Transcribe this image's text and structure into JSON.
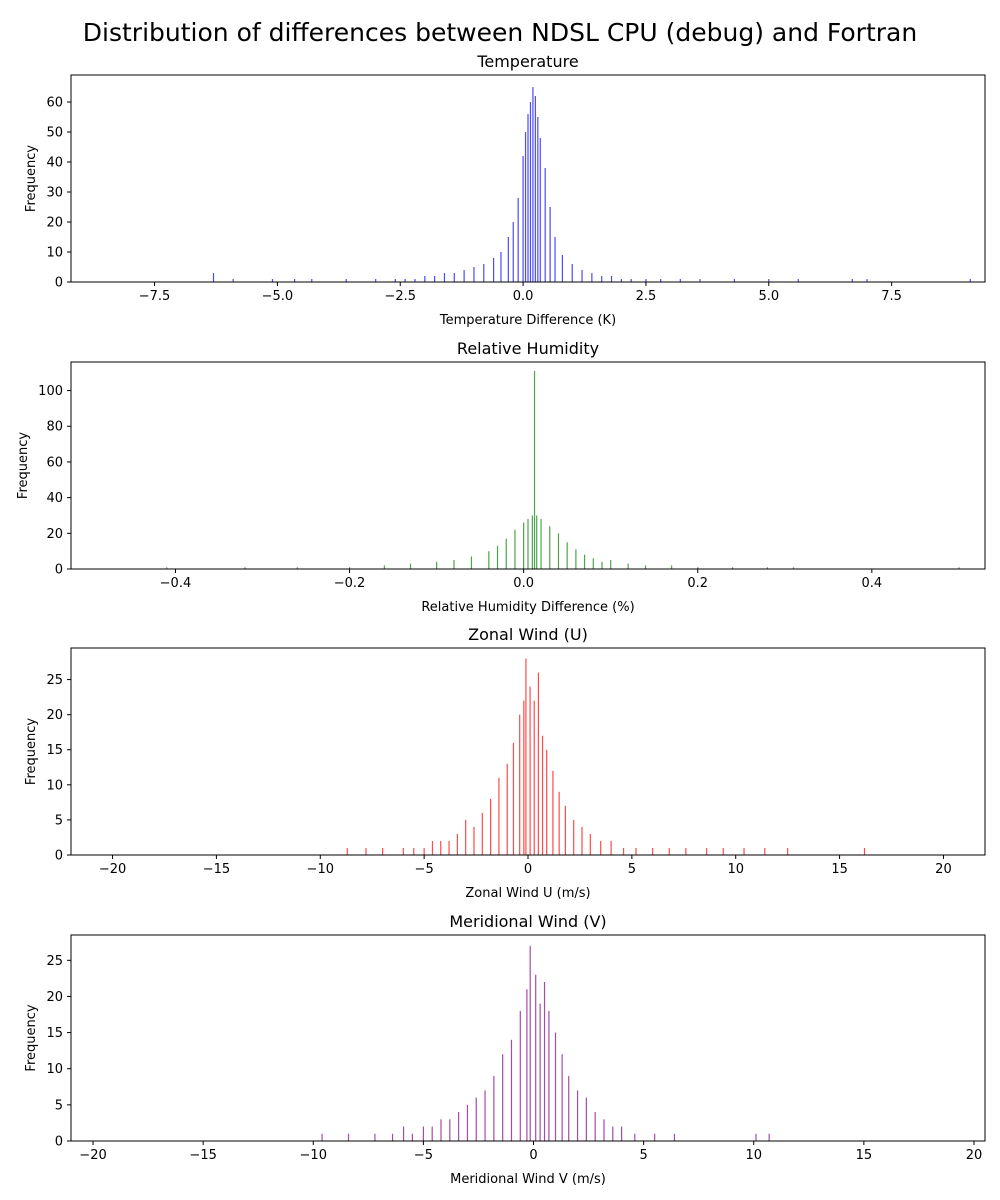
{
  "figure": {
    "suptitle": "Distribution of differences between NDSL CPU (debug) and Fortran"
  },
  "chart_data": [
    {
      "type": "bar",
      "title": "Temperature",
      "xlabel": "Temperature Difference (K)",
      "ylabel": "Frequency",
      "color": "#4b4bff",
      "xlim": [
        -9.2,
        9.4
      ],
      "ylim": [
        0,
        69
      ],
      "xticks": [
        -7.5,
        -5.0,
        -2.5,
        0.0,
        2.5,
        5.0,
        7.5
      ],
      "xtick_labels": [
        "−7.5",
        "−5.0",
        "−2.5",
        "0.0",
        "2.5",
        "5.0",
        "7.5"
      ],
      "yticks": [
        0,
        10,
        20,
        30,
        40,
        50,
        60
      ],
      "ytick_labels": [
        "0",
        "10",
        "20",
        "30",
        "40",
        "50",
        "60"
      ],
      "grid": false,
      "bins": [
        [
          -6.3,
          3
        ],
        [
          -5.9,
          1
        ],
        [
          -5.1,
          1
        ],
        [
          -4.65,
          1
        ],
        [
          -4.3,
          1
        ],
        [
          -3.6,
          1
        ],
        [
          -3.0,
          1
        ],
        [
          -2.6,
          1
        ],
        [
          -2.4,
          1
        ],
        [
          -2.2,
          1
        ],
        [
          -2.0,
          2
        ],
        [
          -1.8,
          2
        ],
        [
          -1.6,
          3
        ],
        [
          -1.4,
          3
        ],
        [
          -1.2,
          4
        ],
        [
          -1.0,
          5
        ],
        [
          -0.8,
          6
        ],
        [
          -0.6,
          8
        ],
        [
          -0.45,
          10
        ],
        [
          -0.3,
          15
        ],
        [
          -0.2,
          20
        ],
        [
          -0.1,
          28
        ],
        [
          0.0,
          42
        ],
        [
          0.05,
          50
        ],
        [
          0.1,
          56
        ],
        [
          0.15,
          60
        ],
        [
          0.2,
          65
        ],
        [
          0.25,
          62
        ],
        [
          0.3,
          55
        ],
        [
          0.35,
          48
        ],
        [
          0.45,
          38
        ],
        [
          0.55,
          25
        ],
        [
          0.65,
          15
        ],
        [
          0.8,
          9
        ],
        [
          1.0,
          6
        ],
        [
          1.2,
          4
        ],
        [
          1.4,
          3
        ],
        [
          1.6,
          2
        ],
        [
          1.8,
          2
        ],
        [
          2.0,
          1
        ],
        [
          2.2,
          1
        ],
        [
          2.5,
          1
        ],
        [
          2.8,
          1
        ],
        [
          3.2,
          1
        ],
        [
          3.6,
          1
        ],
        [
          4.3,
          1
        ],
        [
          5.0,
          1
        ],
        [
          5.6,
          1
        ],
        [
          6.7,
          1
        ],
        [
          7.0,
          1
        ],
        [
          9.1,
          1
        ]
      ]
    },
    {
      "type": "bar",
      "title": "Relative Humidity",
      "xlabel": "Relative Humidity Difference (%)",
      "ylabel": "Frequency",
      "color": "#4ca64c",
      "xlim": [
        -0.52,
        0.53
      ],
      "ylim": [
        0,
        116
      ],
      "xticks": [
        -0.4,
        -0.2,
        0.0,
        0.2,
        0.4
      ],
      "xtick_labels": [
        "−0.4",
        "−0.2",
        "0.0",
        "0.2",
        "0.4"
      ],
      "yticks": [
        0,
        20,
        40,
        60,
        80,
        100
      ],
      "ytick_labels": [
        "0",
        "20",
        "40",
        "60",
        "80",
        "100"
      ],
      "grid": false,
      "bins": [
        [
          -0.41,
          1
        ],
        [
          -0.32,
          1
        ],
        [
          -0.26,
          1
        ],
        [
          -0.2,
          1
        ],
        [
          -0.16,
          2
        ],
        [
          -0.13,
          3
        ],
        [
          -0.1,
          4
        ],
        [
          -0.08,
          5
        ],
        [
          -0.06,
          7
        ],
        [
          -0.04,
          10
        ],
        [
          -0.03,
          13
        ],
        [
          -0.02,
          17
        ],
        [
          -0.01,
          22
        ],
        [
          0.0,
          26
        ],
        [
          0.005,
          28
        ],
        [
          0.01,
          30
        ],
        [
          0.0125,
          111
        ],
        [
          0.015,
          30
        ],
        [
          0.02,
          28
        ],
        [
          0.03,
          24
        ],
        [
          0.04,
          20
        ],
        [
          0.05,
          15
        ],
        [
          0.06,
          11
        ],
        [
          0.07,
          8
        ],
        [
          0.08,
          6
        ],
        [
          0.09,
          4
        ],
        [
          0.1,
          5
        ],
        [
          0.12,
          3
        ],
        [
          0.14,
          2
        ],
        [
          0.17,
          2
        ],
        [
          0.2,
          1
        ],
        [
          0.24,
          1
        ],
        [
          0.28,
          1
        ],
        [
          0.31,
          1
        ],
        [
          0.5,
          1
        ]
      ]
    },
    {
      "type": "bar",
      "title": "Zonal Wind (U)",
      "xlabel": "Zonal Wind U (m/s)",
      "ylabel": "Frequency",
      "color": "#ff4b4b",
      "xlim": [
        -22,
        22
      ],
      "ylim": [
        0,
        29.5
      ],
      "xticks": [
        -20,
        -15,
        -10,
        -5,
        0,
        5,
        10,
        15,
        20
      ],
      "xtick_labels": [
        "−20",
        "−15",
        "−10",
        "−5",
        "0",
        "5",
        "10",
        "15",
        "20"
      ],
      "yticks": [
        0,
        5,
        10,
        15,
        20,
        25
      ],
      "ytick_labels": [
        "0",
        "5",
        "10",
        "15",
        "20",
        "25"
      ],
      "grid": false,
      "bins": [
        [
          -8.7,
          1
        ],
        [
          -7.8,
          1
        ],
        [
          -7.0,
          1
        ],
        [
          -6.0,
          1
        ],
        [
          -5.5,
          1
        ],
        [
          -5.0,
          1
        ],
        [
          -4.6,
          2
        ],
        [
          -4.2,
          2
        ],
        [
          -3.8,
          2
        ],
        [
          -3.4,
          3
        ],
        [
          -3.0,
          5
        ],
        [
          -2.6,
          4
        ],
        [
          -2.2,
          6
        ],
        [
          -1.8,
          8
        ],
        [
          -1.4,
          11
        ],
        [
          -1.0,
          13
        ],
        [
          -0.7,
          16
        ],
        [
          -0.4,
          20
        ],
        [
          -0.2,
          22
        ],
        [
          -0.1,
          28
        ],
        [
          0.1,
          24
        ],
        [
          0.3,
          22
        ],
        [
          0.5,
          26
        ],
        [
          0.7,
          17
        ],
        [
          0.9,
          15
        ],
        [
          1.2,
          12
        ],
        [
          1.5,
          9
        ],
        [
          1.8,
          7
        ],
        [
          2.2,
          5
        ],
        [
          2.6,
          4
        ],
        [
          3.0,
          3
        ],
        [
          3.5,
          2
        ],
        [
          4.0,
          2
        ],
        [
          4.6,
          1
        ],
        [
          5.2,
          1
        ],
        [
          6.0,
          1
        ],
        [
          6.8,
          1
        ],
        [
          7.6,
          1
        ],
        [
          8.6,
          1
        ],
        [
          9.4,
          1
        ],
        [
          10.4,
          1
        ],
        [
          11.4,
          1
        ],
        [
          12.5,
          1
        ],
        [
          16.2,
          1
        ]
      ]
    },
    {
      "type": "bar",
      "title": "Meridional Wind (V)",
      "xlabel": "Meridional Wind V (m/s)",
      "ylabel": "Frequency",
      "color": "#a64ca6",
      "xlim": [
        -21,
        20.5
      ],
      "ylim": [
        0,
        28.5
      ],
      "xticks": [
        -20,
        -15,
        -10,
        -5,
        0,
        5,
        10,
        15,
        20
      ],
      "xtick_labels": [
        "−20",
        "−15",
        "−10",
        "−5",
        "0",
        "5",
        "10",
        "15",
        "20"
      ],
      "yticks": [
        0,
        5,
        10,
        15,
        20,
        25
      ],
      "ytick_labels": [
        "0",
        "5",
        "10",
        "15",
        "20",
        "25"
      ],
      "grid": false,
      "bins": [
        [
          -9.6,
          1
        ],
        [
          -8.4,
          1
        ],
        [
          -7.2,
          1
        ],
        [
          -6.4,
          1
        ],
        [
          -5.9,
          2
        ],
        [
          -5.5,
          1
        ],
        [
          -5.0,
          2
        ],
        [
          -4.6,
          2
        ],
        [
          -4.2,
          3
        ],
        [
          -3.8,
          3
        ],
        [
          -3.4,
          4
        ],
        [
          -3.0,
          5
        ],
        [
          -2.6,
          6
        ],
        [
          -2.2,
          7
        ],
        [
          -1.8,
          9
        ],
        [
          -1.4,
          12
        ],
        [
          -1.0,
          14
        ],
        [
          -0.6,
          18
        ],
        [
          -0.3,
          21
        ],
        [
          -0.15,
          27
        ],
        [
          0.1,
          23
        ],
        [
          0.3,
          19
        ],
        [
          0.5,
          22
        ],
        [
          0.7,
          18
        ],
        [
          1.0,
          15
        ],
        [
          1.3,
          12
        ],
        [
          1.6,
          9
        ],
        [
          2.0,
          7
        ],
        [
          2.4,
          6
        ],
        [
          2.8,
          4
        ],
        [
          3.2,
          3
        ],
        [
          3.6,
          2
        ],
        [
          4.0,
          2
        ],
        [
          4.6,
          1
        ],
        [
          5.5,
          1
        ],
        [
          6.4,
          1
        ],
        [
          10.1,
          1
        ],
        [
          10.7,
          1
        ]
      ]
    }
  ]
}
